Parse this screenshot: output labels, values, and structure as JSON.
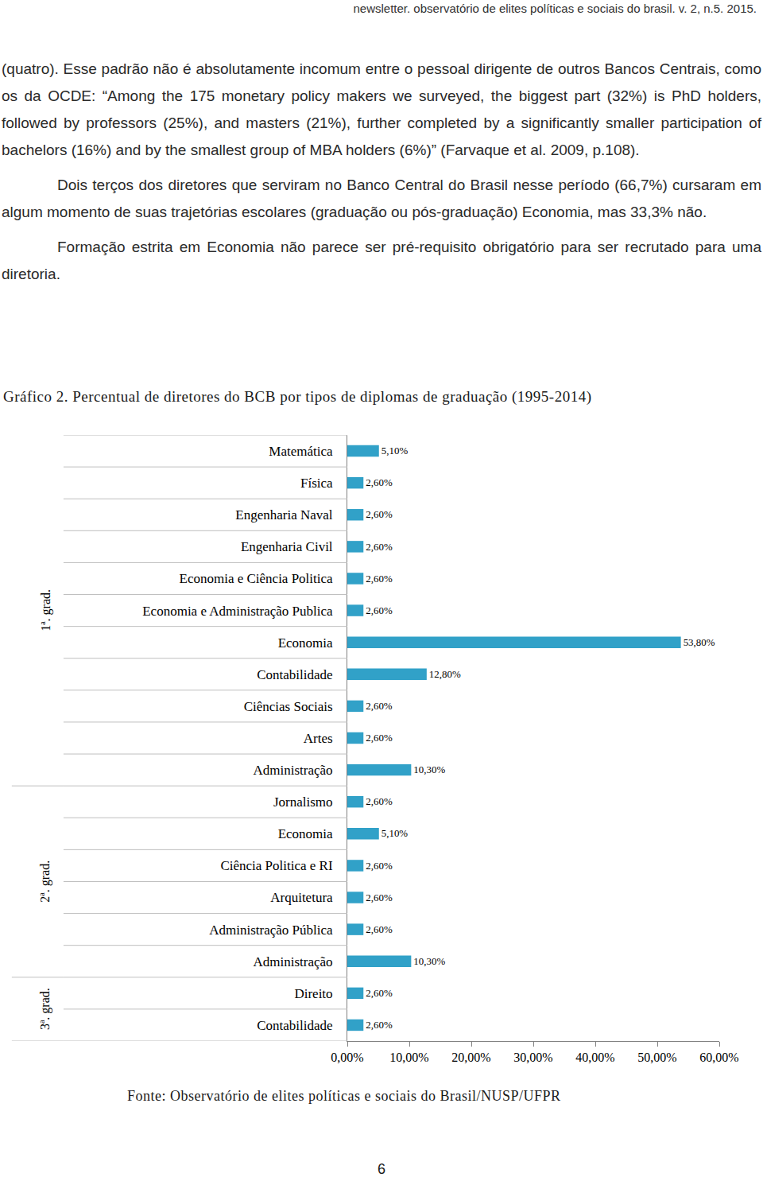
{
  "header": "newsletter. observatório de elites políticas e sociais do brasil. v. 2, n.5. 2015.",
  "paragraphs": [
    "(quatro). Esse padrão não é absolutamente incomum entre o pessoal dirigente de outros Bancos Centrais, como os da OCDE: “Among the 175 monetary policy makers we surveyed, the biggest part (32%) is PhD holders, followed by professors (25%), and masters (21%), further completed by a significantly smaller participation of bachelors (16%) and by the smallest group of MBA holders (6%)” (Farvaque et al. 2009, p.108).",
    "Dois terços dos diretores que serviram no Banco Central do Brasil nesse período (66,7%) cursaram em algum momento de suas trajetórias escolares (graduação ou pós-graduação) Economia, mas 33,3% não.",
    "Formação estrita em Economia não parece ser pré-requisito obrigatório para ser recrutado para uma diretoria."
  ],
  "chart_data": {
    "type": "bar",
    "orientation": "horizontal",
    "title": "Gráfico 2. Percentual de diretores do BCB por tipos de diplomas de graduação (1995-2014)",
    "categories": [
      "Matemática",
      "Física",
      "Engenharia Naval",
      "Engenharia Civil",
      "Economia e Ciência Politica",
      "Economia e Administração Publica",
      "Economia",
      "Contabilidade",
      "Ciências Sociais",
      "Artes",
      "Administração",
      "Jornalismo",
      "Economia",
      "Ciência Politica e RI",
      "Arquitetura",
      "Administração Pública",
      "Administração",
      "Direito",
      "Contabilidade"
    ],
    "category_groups": [
      "1ª. grad.",
      "1ª. grad.",
      "1ª. grad.",
      "1ª. grad.",
      "1ª. grad.",
      "1ª. grad.",
      "1ª. grad.",
      "1ª. grad.",
      "1ª. grad.",
      "1ª. grad.",
      "1ª. grad.",
      "2ª. grad.",
      "2ª. grad.",
      "2ª. grad.",
      "2ª. grad.",
      "2ª. grad.",
      "2ª. grad.",
      "3ª. grad.",
      "3ª. grad."
    ],
    "values": [
      5.1,
      2.6,
      2.6,
      2.6,
      2.6,
      2.6,
      53.8,
      12.8,
      2.6,
      2.6,
      10.3,
      2.6,
      5.1,
      2.6,
      2.6,
      2.6,
      10.3,
      2.6,
      2.6
    ],
    "value_labels": [
      "5,10%",
      "2,60%",
      "2,60%",
      "2,60%",
      "2,60%",
      "2,60%",
      "53,80%",
      "12,80%",
      "2,60%",
      "2,60%",
      "10,30%",
      "2,60%",
      "5,10%",
      "2,60%",
      "2,60%",
      "2,60%",
      "10,30%",
      "2,60%",
      "2,60%"
    ],
    "color": "#31a1c8",
    "xlim": [
      0,
      60
    ],
    "xticks": [
      {
        "value": 0,
        "label": "0,00%"
      },
      {
        "value": 10,
        "label": "10,00%"
      },
      {
        "value": 20,
        "label": "20,00%"
      },
      {
        "value": 30,
        "label": "30,00%"
      },
      {
        "value": 40,
        "label": "40,00%"
      },
      {
        "value": 50,
        "label": "50,00%"
      },
      {
        "value": 60,
        "label": "60,00%"
      }
    ],
    "data_labels": true,
    "grid": false
  },
  "source": "Fonte: Observatório de elites políticas e sociais do Brasil/NUSP/UFPR",
  "page_number": "6"
}
